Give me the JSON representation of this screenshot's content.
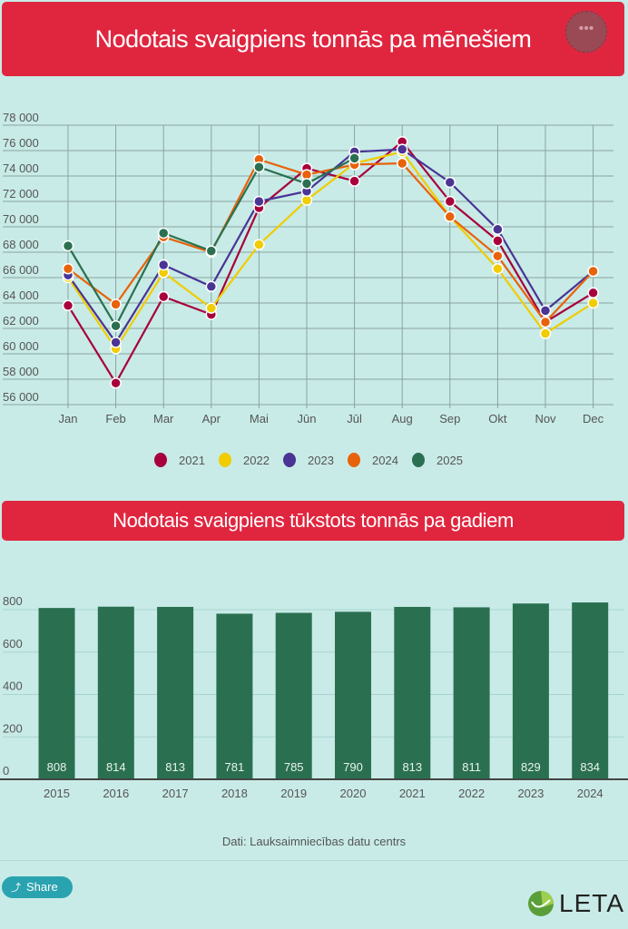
{
  "chart1": {
    "title": "Nodotais svaigpiens tonnās pa mēnešiem",
    "menu_icon": "more-dots-icon",
    "menu_label": "•••"
  },
  "chart2": {
    "title": "Nodotais svaigpiens tūkstots tonnās pa gadiem"
  },
  "footer": {
    "source": "Dati: Lauksaimniecības datu centrs",
    "share_label": "Share",
    "share_icon": "share-icon",
    "logo_text": "LETA"
  },
  "chart_data": [
    {
      "type": "line",
      "title": "Nodotais svaigpiens tonnās pa mēnešiem",
      "xlabel": "",
      "ylabel": "",
      "categories": [
        "Jan",
        "Feb",
        "Mar",
        "Apr",
        "Mai",
        "Jūn",
        "Jūl",
        "Aug",
        "Sep",
        "Okt",
        "Nov",
        "Dec"
      ],
      "ylim": [
        56000,
        78000
      ],
      "yticks": [
        56000,
        58000,
        60000,
        62000,
        64000,
        66000,
        68000,
        70000,
        72000,
        74000,
        76000,
        78000
      ],
      "ytick_labels": [
        "56 000",
        "58 000",
        "60 000",
        "62 000",
        "64 000",
        "66 000",
        "68 000",
        "70 000",
        "72 000",
        "74 000",
        "76 000",
        "78 000"
      ],
      "grid": true,
      "legend_position": "bottom",
      "series": [
        {
          "name": "2021",
          "color": "#a8003b",
          "values": [
            63800,
            57700,
            64500,
            63100,
            71500,
            74600,
            73600,
            76700,
            72000,
            68900,
            62500,
            64800
          ]
        },
        {
          "name": "2022",
          "color": "#f0cc00",
          "values": [
            66000,
            60400,
            66400,
            63600,
            68600,
            72100,
            75000,
            75900,
            70800,
            66700,
            61600,
            64000
          ]
        },
        {
          "name": "2023",
          "color": "#4a3494",
          "values": [
            66200,
            60900,
            67000,
            65300,
            72000,
            72800,
            75900,
            76100,
            73500,
            69800,
            63400,
            66500
          ]
        },
        {
          "name": "2024",
          "color": "#e8620a",
          "values": [
            66700,
            63900,
            69200,
            68000,
            75300,
            74100,
            74900,
            75000,
            70800,
            67700,
            62500,
            66500
          ]
        },
        {
          "name": "2025",
          "color": "#2a7050",
          "values": [
            68500,
            62200,
            69500,
            68100,
            74700,
            73400,
            75400,
            null,
            null,
            null,
            null,
            null
          ]
        }
      ]
    },
    {
      "type": "bar",
      "title": "Nodotais svaigpiens tūkstots tonnās pa gadiem",
      "xlabel": "",
      "ylabel": "",
      "categories": [
        "2015",
        "2016",
        "2017",
        "2018",
        "2019",
        "2020",
        "2021",
        "2022",
        "2023",
        "2024"
      ],
      "values": [
        808,
        814,
        813,
        781,
        785,
        790,
        813,
        811,
        829,
        834
      ],
      "value_labels": [
        "808",
        "814",
        "813",
        "781",
        "785",
        "790",
        "813",
        "811",
        "829",
        "834"
      ],
      "ylim": [
        0,
        900
      ],
      "yticks": [
        0,
        200,
        400,
        600,
        800
      ],
      "ytick_labels": [
        "0",
        "200",
        "400",
        "600",
        "800"
      ],
      "grid": true,
      "color": "#2a7050"
    }
  ]
}
